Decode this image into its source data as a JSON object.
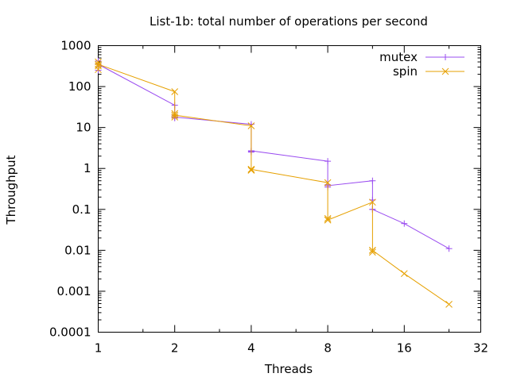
{
  "chart_data": {
    "type": "line",
    "title": "List-1b: total number of operations per second",
    "xlabel": "Threads",
    "ylabel": "Throughput",
    "xscale": "log2",
    "yscale": "log10",
    "xlim": [
      1,
      32
    ],
    "ylim": [
      0.0001,
      1000
    ],
    "xticks": [
      1,
      2,
      4,
      8,
      16,
      32
    ],
    "xtick_labels": [
      "1",
      "2",
      "4",
      "8",
      "16",
      "32"
    ],
    "yticks": [
      0.0001,
      0.001,
      0.01,
      0.1,
      1,
      10,
      100,
      1000
    ],
    "ytick_labels": [
      "0.0001",
      "0.001",
      "0.01",
      "0.1",
      "1",
      "10",
      "100",
      "1000"
    ],
    "grid": false,
    "legend_position": "top-right",
    "series": [
      {
        "name": "mutex",
        "color": "#9a4cf0",
        "marker": "plus",
        "x": [
          1,
          1,
          1,
          1,
          2,
          2,
          2,
          2,
          4,
          4,
          4,
          4,
          8,
          8,
          8,
          8,
          12,
          12,
          12,
          12,
          16,
          24
        ],
        "y": [
          420,
          300,
          250,
          350,
          35,
          20,
          17,
          18,
          12,
          2.6,
          2.5,
          2.7,
          1.5,
          0.4,
          0.35,
          0.38,
          0.5,
          0.17,
          0.1,
          0.1,
          0.045,
          0.011
        ]
      },
      {
        "name": "spin",
        "color": "#e6a000",
        "marker": "cross",
        "x": [
          1,
          1,
          1,
          1,
          2,
          2,
          2,
          2,
          4,
          4,
          4,
          4,
          8,
          8,
          8,
          8,
          12,
          12,
          12,
          12,
          16,
          24
        ],
        "y": [
          400,
          320,
          260,
          350,
          75,
          22,
          18,
          20,
          11,
          0.95,
          0.9,
          0.95,
          0.45,
          0.06,
          0.055,
          0.055,
          0.15,
          0.01,
          0.009,
          0.01,
          0.0027,
          0.00048
        ]
      }
    ]
  }
}
